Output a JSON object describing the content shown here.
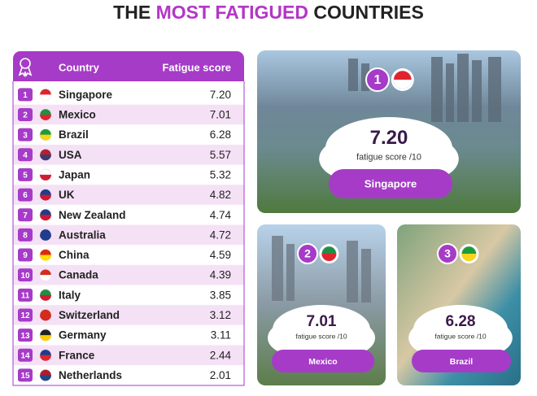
{
  "title": {
    "start": "THE",
    "highlight": "MOST FATIGUED",
    "end": "COUNTRIES"
  },
  "table": {
    "header": {
      "country": "Country",
      "score": "Fatigue score"
    },
    "rows": [
      {
        "rank": 1,
        "country": "Singapore",
        "score": "7.20"
      },
      {
        "rank": 2,
        "country": "Mexico",
        "score": "7.01"
      },
      {
        "rank": 3,
        "country": "Brazil",
        "score": "6.28"
      },
      {
        "rank": 4,
        "country": "USA",
        "score": "5.57"
      },
      {
        "rank": 5,
        "country": "Japan",
        "score": "5.32"
      },
      {
        "rank": 6,
        "country": "UK",
        "score": "4.82"
      },
      {
        "rank": 7,
        "country": "New Zealand",
        "score": "4.74"
      },
      {
        "rank": 8,
        "country": "Australia",
        "score": "4.72"
      },
      {
        "rank": 9,
        "country": "China",
        "score": "4.59"
      },
      {
        "rank": 10,
        "country": "Canada",
        "score": "4.39"
      },
      {
        "rank": 11,
        "country": "Italy",
        "score": "3.85"
      },
      {
        "rank": 12,
        "country": "Switzerland",
        "score": "3.12"
      },
      {
        "rank": 13,
        "country": "Germany",
        "score": "3.11"
      },
      {
        "rank": 14,
        "country": "France",
        "score": "2.44"
      },
      {
        "rank": 15,
        "country": "Netherlands",
        "score": "2.01"
      }
    ]
  },
  "cards": [
    {
      "rank": 1,
      "score": "7.20",
      "caption": "fatigue score /10",
      "name": "Singapore"
    },
    {
      "rank": 2,
      "score": "7.01",
      "caption": "fatigue score /10",
      "name": "Mexico"
    },
    {
      "rank": 3,
      "score": "6.28",
      "caption": "fatigue score /10",
      "name": "Brazil"
    }
  ]
}
